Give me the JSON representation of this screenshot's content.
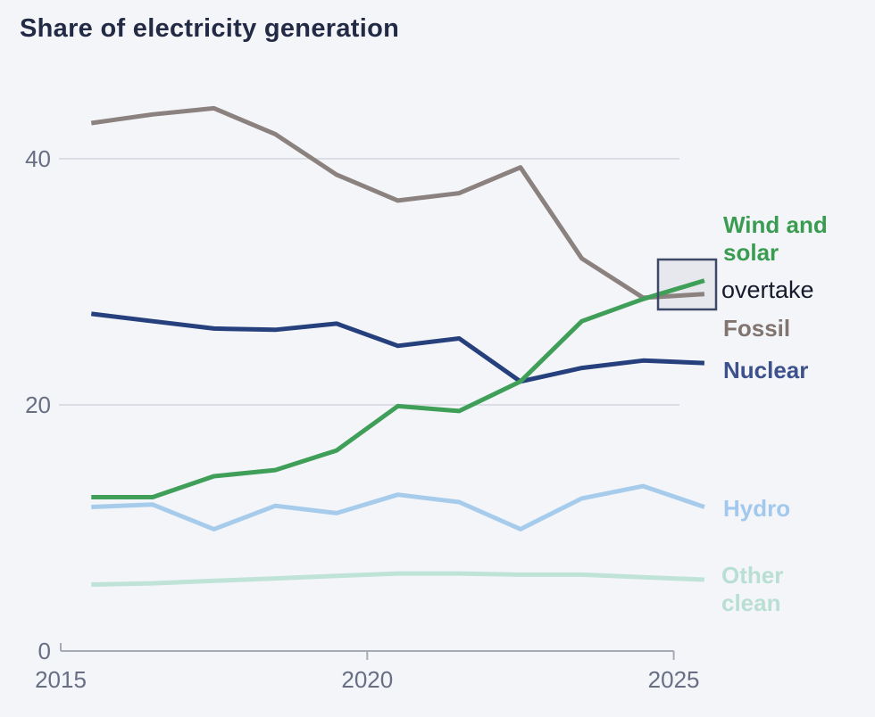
{
  "title": "Share of electricity generation",
  "annotations": {
    "wind_solar": "Wind and solar",
    "overtake": "overtake",
    "fossil": "Fossil",
    "nuclear": "Nuclear",
    "hydro": "Hydro",
    "other_clean": "Other clean"
  },
  "colors": {
    "background": "#f3f5f9",
    "title": "#232a45",
    "axis_text": "#686e84",
    "gridline": "#d3d6dd",
    "axis_line": "#a7abb7",
    "highlight_box_fill": "#e6e8ee",
    "highlight_box_stroke": "#3d4967"
  },
  "label_colors": {
    "wind_solar": "#3a9c51",
    "overtake": "#161a2c",
    "fossil": "#82746f",
    "nuclear": "#3d518d",
    "hydro": "#a2c8ee",
    "other_clean": "#b9dfd2"
  },
  "chart_data": {
    "type": "line",
    "title": "Share of electricity generation",
    "x": [
      2015,
      2016,
      2017,
      2018,
      2019,
      2020,
      2021,
      2022,
      2023,
      2024,
      2025
    ],
    "series": [
      {
        "name": "Fossil",
        "color": "#8b817e",
        "values": [
          42.9,
          43.6,
          44.1,
          42.0,
          38.7,
          36.6,
          37.2,
          39.3,
          31.9,
          28.7,
          29.0
        ]
      },
      {
        "name": "Nuclear",
        "color": "#25407d",
        "values": [
          27.4,
          26.8,
          26.2,
          26.1,
          26.6,
          24.8,
          25.4,
          21.9,
          23.0,
          23.6,
          23.4
        ]
      },
      {
        "name": "Wind and solar",
        "color": "#3f9e58",
        "values": [
          12.5,
          12.5,
          14.2,
          14.7,
          16.3,
          19.9,
          19.5,
          21.9,
          26.8,
          28.6,
          30.1
        ]
      },
      {
        "name": "Hydro",
        "color": "#a7cceb",
        "values": [
          11.7,
          11.9,
          9.9,
          11.8,
          11.2,
          12.7,
          12.1,
          9.9,
          12.4,
          13.4,
          11.7
        ]
      },
      {
        "name": "Other clean",
        "color": "#bfe3d6",
        "values": [
          5.4,
          5.5,
          5.7,
          5.9,
          6.1,
          6.3,
          6.3,
          6.2,
          6.2,
          6.0,
          5.8
        ]
      }
    ],
    "xticks": [
      2015,
      2020,
      2025
    ],
    "yticks": [
      0,
      20,
      40
    ],
    "ylim": [
      0,
      46
    ],
    "xlabel": "",
    "ylabel": "",
    "grid": "horizontal",
    "legend_position": "right-annotations",
    "annotation_note": "Wind and solar overtake Fossil (highlight box at 2024-2025 crossover)"
  }
}
